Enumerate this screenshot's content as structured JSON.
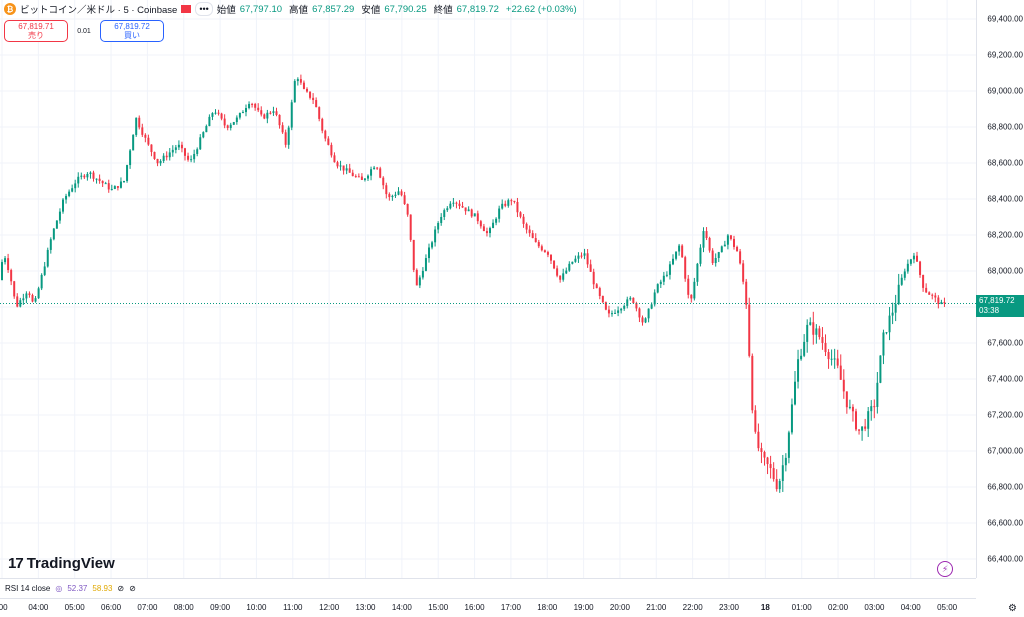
{
  "header": {
    "coin_icon": "₿",
    "symbol": "ビットコイン／米ドル · 5 · Coinbase",
    "more": "•••",
    "open_label": "始値",
    "open_value": "67,797.10",
    "high_label": "高値",
    "high_value": "67,857.29",
    "low_label": "安値",
    "low_value": "67,790.25",
    "close_label": "終値",
    "close_value": "67,819.72",
    "change": "+22.62 (+0.03%)"
  },
  "trade": {
    "sell_price": "67,819.71",
    "sell_label": "売り",
    "spread": "0.01",
    "buy_price": "67,819.72",
    "buy_label": "買い"
  },
  "last_price": {
    "value": "67,819.72",
    "countdown": "03:38",
    "color": "#089981"
  },
  "price_axis": [
    "69,400.00",
    "69,200.00",
    "69,000.00",
    "68,800.00",
    "68,600.00",
    "68,400.00",
    "68,200.00",
    "68,000.00",
    "67,800.00",
    "67,600.00",
    "67,400.00",
    "67,200.00",
    "67,000.00",
    "66,800.00",
    "66,600.00",
    "66,400.00"
  ],
  "time_axis": [
    {
      "label": ":00",
      "bold": false
    },
    {
      "label": "04:00",
      "bold": false
    },
    {
      "label": "05:00",
      "bold": false
    },
    {
      "label": "06:00",
      "bold": false
    },
    {
      "label": "07:00",
      "bold": false
    },
    {
      "label": "08:00",
      "bold": false
    },
    {
      "label": "09:00",
      "bold": false
    },
    {
      "label": "10:00",
      "bold": false
    },
    {
      "label": "11:00",
      "bold": false
    },
    {
      "label": "12:00",
      "bold": false
    },
    {
      "label": "13:00",
      "bold": false
    },
    {
      "label": "14:00",
      "bold": false
    },
    {
      "label": "15:00",
      "bold": false
    },
    {
      "label": "16:00",
      "bold": false
    },
    {
      "label": "17:00",
      "bold": false
    },
    {
      "label": "18:00",
      "bold": false
    },
    {
      "label": "19:00",
      "bold": false
    },
    {
      "label": "20:00",
      "bold": false
    },
    {
      "label": "21:00",
      "bold": false
    },
    {
      "label": "22:00",
      "bold": false
    },
    {
      "label": "23:00",
      "bold": false
    },
    {
      "label": "18",
      "bold": true
    },
    {
      "label": "01:00",
      "bold": false
    },
    {
      "label": "02:00",
      "bold": false
    },
    {
      "label": "03:00",
      "bold": false
    },
    {
      "label": "04:00",
      "bold": false
    },
    {
      "label": "05:00",
      "bold": false
    }
  ],
  "rsi": {
    "label": "RSI 14 close",
    "value1": "52.37",
    "value2": "58.93",
    "color1": "#7e57c2",
    "color2": "#f7c43a"
  },
  "logo": {
    "mark": "17",
    "text": "TradingView"
  },
  "colors": {
    "up": "#089981",
    "down": "#f23645",
    "grid": "#f0f3fa"
  },
  "chart_data": {
    "type": "candlestick",
    "ylim": [
      66400,
      69400
    ],
    "anchors": [
      [
        0,
        67950
      ],
      [
        6,
        68100
      ],
      [
        12,
        67980
      ],
      [
        18,
        67800
      ],
      [
        24,
        67850
      ],
      [
        30,
        67900
      ],
      [
        36,
        67800
      ],
      [
        45,
        68000
      ],
      [
        54,
        68200
      ],
      [
        66,
        68400
      ],
      [
        78,
        68500
      ],
      [
        90,
        68550
      ],
      [
        102,
        68500
      ],
      [
        114,
        68450
      ],
      [
        126,
        68500
      ],
      [
        138,
        68850
      ],
      [
        150,
        68700
      ],
      [
        160,
        68600
      ],
      [
        170,
        68650
      ],
      [
        180,
        68700
      ],
      [
        192,
        68600
      ],
      [
        204,
        68750
      ],
      [
        216,
        68900
      ],
      [
        228,
        68800
      ],
      [
        240,
        68850
      ],
      [
        252,
        68950
      ],
      [
        264,
        68850
      ],
      [
        276,
        68900
      ],
      [
        288,
        68700
      ],
      [
        298,
        69100
      ],
      [
        306,
        69000
      ],
      [
        316,
        68950
      ],
      [
        326,
        68750
      ],
      [
        338,
        68600
      ],
      [
        350,
        68550
      ],
      [
        364,
        68500
      ],
      [
        378,
        68600
      ],
      [
        390,
        68400
      ],
      [
        402,
        68450
      ],
      [
        410,
        68300
      ],
      [
        418,
        67900
      ],
      [
        430,
        68100
      ],
      [
        442,
        68300
      ],
      [
        454,
        68400
      ],
      [
        466,
        68350
      ],
      [
        478,
        68300
      ],
      [
        490,
        68200
      ],
      [
        502,
        68350
      ],
      [
        514,
        68400
      ],
      [
        526,
        68250
      ],
      [
        538,
        68150
      ],
      [
        550,
        68100
      ],
      [
        562,
        67950
      ],
      [
        574,
        68050
      ],
      [
        586,
        68100
      ],
      [
        598,
        67900
      ],
      [
        610,
        67750
      ],
      [
        622,
        67800
      ],
      [
        634,
        67850
      ],
      [
        646,
        67700
      ],
      [
        658,
        67900
      ],
      [
        670,
        68000
      ],
      [
        682,
        68150
      ],
      [
        692,
        67800
      ],
      [
        706,
        68250
      ],
      [
        714,
        68050
      ],
      [
        722,
        68100
      ],
      [
        730,
        68200
      ],
      [
        740,
        68100
      ],
      [
        748,
        67850
      ],
      [
        756,
        67100
      ],
      [
        764,
        66950
      ],
      [
        772,
        66900
      ],
      [
        780,
        66800
      ],
      [
        788,
        67000
      ],
      [
        800,
        67500
      ],
      [
        810,
        67700
      ],
      [
        820,
        67650
      ],
      [
        830,
        67550
      ],
      [
        840,
        67450
      ],
      [
        850,
        67250
      ],
      [
        862,
        67100
      ],
      [
        876,
        67250
      ],
      [
        886,
        67650
      ],
      [
        896,
        67800
      ],
      [
        906,
        68000
      ],
      [
        916,
        68100
      ],
      [
        926,
        67900
      ],
      [
        936,
        67850
      ],
      [
        944,
        67810
      ]
    ]
  }
}
